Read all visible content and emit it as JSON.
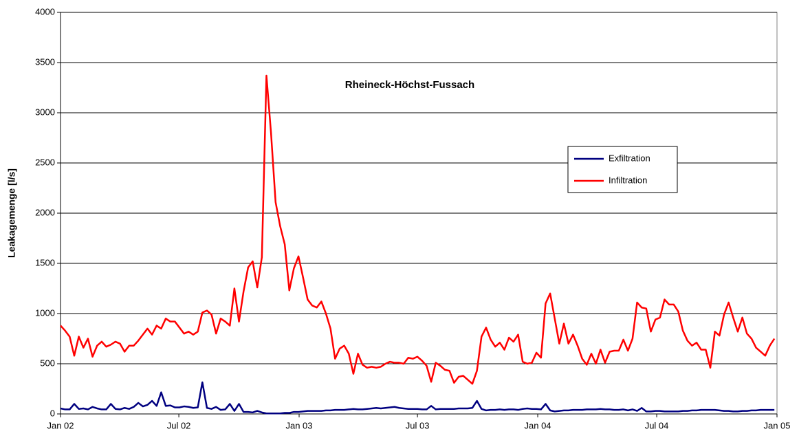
{
  "chart_data": {
    "type": "line",
    "title": "Rheineck-Höchst-Fussach",
    "y_label": "Leakagemenge [l/s]",
    "xlim": [
      0,
      1096
    ],
    "xticks": [
      {
        "value": 0,
        "label": "Jan 02"
      },
      {
        "value": 181,
        "label": "Jul 02"
      },
      {
        "value": 365,
        "label": "Jan 03"
      },
      {
        "value": 546,
        "label": "Jul 03"
      },
      {
        "value": 730,
        "label": "Jan 04"
      },
      {
        "value": 912,
        "label": "Jul 04"
      },
      {
        "value": 1096,
        "label": "Jan 05"
      }
    ],
    "ylim": [
      0,
      4000
    ],
    "yticks": [
      0,
      500,
      1000,
      1500,
      2000,
      2500,
      3000,
      3500,
      4000
    ],
    "grid": true,
    "legend": "right",
    "x": [
      0,
      7,
      14,
      21,
      28,
      35,
      42,
      49,
      56,
      63,
      70,
      77,
      84,
      91,
      98,
      105,
      112,
      119,
      126,
      133,
      140,
      147,
      154,
      161,
      168,
      175,
      182,
      189,
      196,
      203,
      210,
      217,
      224,
      231,
      238,
      245,
      252,
      259,
      266,
      273,
      280,
      287,
      294,
      301,
      308,
      315,
      322,
      329,
      336,
      343,
      350,
      357,
      364,
      371,
      378,
      385,
      392,
      399,
      406,
      413,
      420,
      427,
      434,
      441,
      448,
      455,
      462,
      469,
      476,
      483,
      490,
      497,
      504,
      511,
      518,
      525,
      532,
      539,
      546,
      553,
      560,
      567,
      574,
      581,
      588,
      595,
      602,
      609,
      616,
      623,
      630,
      637,
      644,
      651,
      658,
      665,
      672,
      679,
      686,
      693,
      700,
      707,
      714,
      721,
      728,
      735,
      742,
      749,
      756,
      763,
      770,
      777,
      784,
      791,
      798,
      805,
      812,
      819,
      826,
      833,
      840,
      847,
      854,
      861,
      868,
      875,
      882,
      889,
      896,
      903,
      910,
      917,
      924,
      931,
      938,
      945,
      952,
      959,
      966,
      973,
      980,
      987,
      994,
      1001,
      1008,
      1015,
      1022,
      1029,
      1036,
      1043,
      1050,
      1057,
      1064,
      1071,
      1078,
      1085,
      1092
    ],
    "series": [
      {
        "name": "Exfiltration",
        "color": "#000080",
        "values": [
          55,
          45,
          45,
          100,
          50,
          55,
          45,
          70,
          55,
          45,
          45,
          100,
          50,
          45,
          60,
          50,
          70,
          110,
          75,
          90,
          130,
          80,
          215,
          80,
          85,
          65,
          65,
          75,
          70,
          60,
          65,
          315,
          60,
          50,
          70,
          40,
          45,
          100,
          30,
          100,
          20,
          20,
          15,
          30,
          15,
          5,
          5,
          5,
          5,
          10,
          10,
          20,
          20,
          25,
          30,
          30,
          30,
          30,
          35,
          35,
          40,
          40,
          40,
          45,
          50,
          45,
          45,
          50,
          55,
          60,
          55,
          60,
          65,
          70,
          60,
          55,
          50,
          50,
          50,
          45,
          45,
          80,
          45,
          50,
          50,
          50,
          50,
          55,
          55,
          55,
          60,
          130,
          50,
          35,
          40,
          40,
          45,
          40,
          45,
          45,
          40,
          50,
          55,
          50,
          50,
          45,
          100,
          35,
          25,
          30,
          35,
          35,
          40,
          40,
          40,
          45,
          45,
          45,
          50,
          45,
          45,
          40,
          40,
          45,
          35,
          45,
          30,
          60,
          25,
          25,
          30,
          30,
          25,
          25,
          25,
          25,
          30,
          30,
          35,
          35,
          40,
          40,
          40,
          40,
          35,
          30,
          30,
          25,
          25,
          30,
          30,
          35,
          35,
          40,
          40,
          40,
          40
        ]
      },
      {
        "name": "Infiltration",
        "color": "#ff0000",
        "values": [
          880,
          830,
          770,
          580,
          770,
          660,
          750,
          570,
          680,
          720,
          670,
          690,
          720,
          700,
          620,
          680,
          680,
          730,
          790,
          850,
          790,
          880,
          850,
          950,
          920,
          920,
          860,
          800,
          820,
          790,
          820,
          1010,
          1030,
          990,
          800,
          950,
          920,
          880,
          1250,
          920,
          1220,
          1460,
          1520,
          1260,
          1560,
          3370,
          2800,
          2110,
          1870,
          1690,
          1230,
          1450,
          1570,
          1360,
          1140,
          1080,
          1060,
          1120,
          1000,
          850,
          550,
          650,
          680,
          600,
          400,
          600,
          490,
          460,
          470,
          460,
          470,
          500,
          520,
          510,
          510,
          500,
          560,
          550,
          570,
          530,
          480,
          320,
          510,
          480,
          440,
          430,
          310,
          370,
          380,
          340,
          300,
          430,
          770,
          860,
          740,
          670,
          710,
          640,
          760,
          720,
          790,
          520,
          500,
          510,
          610,
          560,
          1100,
          1200,
          950,
          700,
          900,
          700,
          790,
          680,
          550,
          490,
          600,
          500,
          640,
          510,
          620,
          630,
          630,
          740,
          630,
          750,
          1110,
          1060,
          1050,
          820,
          940,
          960,
          1140,
          1090,
          1090,
          1020,
          830,
          730,
          680,
          710,
          640,
          640,
          460,
          820,
          780,
          990,
          1110,
          960,
          820,
          960,
          800,
          750,
          660,
          620,
          580,
          680,
          750
        ]
      }
    ]
  }
}
